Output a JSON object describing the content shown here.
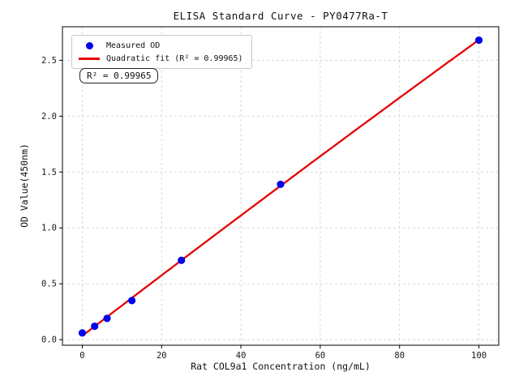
{
  "figure": {
    "title": "ELISA Standard Curve - PY0477Ra-T",
    "xlabel": "Rat COL9a1 Concentration (ng/mL)",
    "ylabel": "OD Value(450nm)"
  },
  "legend": {
    "position": "upper left",
    "items": [
      {
        "label": "Measured OD",
        "marker": "dot",
        "color": "#0000ee"
      },
      {
        "label": "Quadratic fit (R² = 0.99965)",
        "marker": "line",
        "color": "#e60000"
      }
    ]
  },
  "annotation": {
    "text": "R² = 0.99965"
  },
  "chart_data": {
    "type": "scatter",
    "title": "ELISA Standard Curve - PY0477Ra-T",
    "xlabel": "Rat COL9a1 Concentration (ng/mL)",
    "ylabel": "OD Value(450nm)",
    "x": [
      0,
      3.125,
      6.25,
      12.5,
      25,
      50,
      100
    ],
    "series": [
      {
        "name": "Measured OD",
        "type": "scatter",
        "color": "#0000ee",
        "values": [
          0.06,
          0.12,
          0.19,
          0.35,
          0.71,
          1.39,
          2.68
        ]
      },
      {
        "name": "Quadratic fit (R² = 0.99965)",
        "type": "quadratic_fit_line",
        "color": "#e60000",
        "r_squared": 0.99965
      }
    ],
    "xticks": [
      0,
      20,
      40,
      60,
      80,
      100
    ],
    "yticks": [
      0.0,
      0.5,
      1.0,
      1.5,
      2.0,
      2.5
    ],
    "xlim": [
      -5,
      105
    ],
    "ylim": [
      -0.05,
      2.8
    ],
    "grid": true,
    "grid_style": "dashed",
    "background": "#ffffff",
    "legend_position": "upper left"
  }
}
